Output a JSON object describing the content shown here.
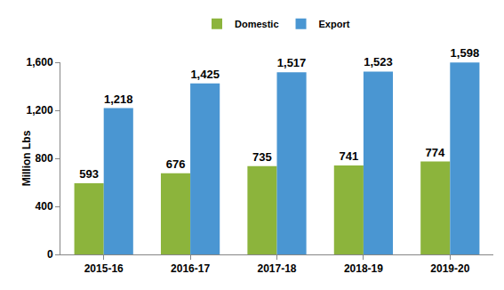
{
  "chart_data": {
    "type": "bar",
    "categories": [
      "2015-16",
      "2016-17",
      "2017-18",
      "2018-19",
      "2019-20"
    ],
    "series": [
      {
        "name": "Domestic",
        "color": "#8cb43c",
        "values": [
          593,
          676,
          735,
          741,
          774
        ]
      },
      {
        "name": "Export",
        "color": "#4a96d2",
        "values": [
          1218,
          1425,
          1517,
          1523,
          1598
        ],
        "value_labels": [
          "1,218",
          "1,425",
          "1,517",
          "1,523",
          "1,598"
        ]
      }
    ],
    "ylabel": "Million Lbs",
    "ylim": [
      0,
      1600
    ],
    "yticks": [
      0,
      400,
      800,
      {
        "value": 1200,
        "label": "1,200"
      },
      {
        "value": 1600,
        "label": "1,600"
      }
    ],
    "grid": false,
    "legend": "top",
    "data_labels": true
  }
}
